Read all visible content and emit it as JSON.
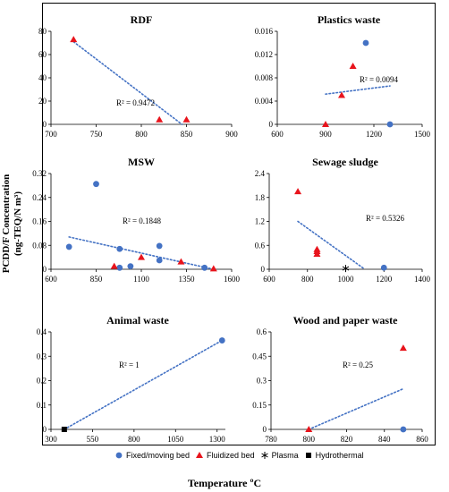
{
  "y_axis_label_line1": "PCDD/F Concentration",
  "y_axis_label_line2": "(ng-TEQ/N m³)",
  "x_axis_label": "Temperature ºC",
  "legend": [
    {
      "label": "Fixed/moving bed",
      "marker": "circle",
      "color": "#4472C4"
    },
    {
      "label": "Fluidized bed",
      "marker": "triangle",
      "color": "#E8141C"
    },
    {
      "label": "Plasma",
      "marker": "asterisk",
      "color": "#000000"
    },
    {
      "label": "Hydrothermal",
      "marker": "square",
      "color": "#000000"
    }
  ],
  "chart_data": [
    {
      "type": "scatter",
      "title": "RDF",
      "xlim": [
        700,
        900
      ],
      "xticks": [
        700,
        750,
        800,
        850,
        900
      ],
      "ylim": [
        0,
        80
      ],
      "yticks": [
        0,
        20,
        40,
        60,
        80
      ],
      "series": [
        {
          "name": "Fluidized bed",
          "marker": "triangle",
          "points": [
            [
              725,
              73
            ],
            [
              820,
              4
            ],
            [
              850,
              4
            ]
          ]
        }
      ],
      "trendline": [
        [
          725,
          71
        ],
        [
          845,
          0
        ]
      ],
      "r2_label": "R² = 0.9472"
    },
    {
      "type": "scatter",
      "title": "Plastics waste",
      "xlim": [
        600,
        1500
      ],
      "xticks": [
        600,
        900,
        1200,
        1500
      ],
      "ylim": [
        0,
        0.016
      ],
      "yticks": [
        0,
        0.004,
        0.008,
        0.012,
        0.016
      ],
      "series": [
        {
          "name": "Fixed/moving bed",
          "marker": "circle",
          "points": [
            [
              1150,
              0.014
            ],
            [
              1300,
              0
            ]
          ]
        },
        {
          "name": "Fluidized bed",
          "marker": "triangle",
          "points": [
            [
              1070,
              0.01
            ],
            [
              1000,
              0.005
            ],
            [
              900,
              0
            ]
          ]
        }
      ],
      "trendline": [
        [
          900,
          0.0052
        ],
        [
          1300,
          0.0066
        ]
      ],
      "r2_label": "R² = 0.0094"
    },
    {
      "type": "scatter",
      "title": "MSW",
      "xlim": [
        600,
        1600
      ],
      "xticks": [
        600,
        850,
        1100,
        1350,
        1600
      ],
      "ylim": [
        0,
        0.32
      ],
      "yticks": [
        0,
        0.08,
        0.16,
        0.24,
        0.32
      ],
      "series": [
        {
          "name": "Fixed/moving bed",
          "marker": "circle",
          "points": [
            [
              700,
              0.075
            ],
            [
              850,
              0.285
            ],
            [
              980,
              0.068
            ],
            [
              980,
              0.005
            ],
            [
              1040,
              0.01
            ],
            [
              1200,
              0.078
            ],
            [
              1200,
              0.03
            ],
            [
              1450,
              0.005
            ]
          ]
        },
        {
          "name": "Fluidized bed",
          "marker": "triangle",
          "points": [
            [
              950,
              0.01
            ],
            [
              1100,
              0.04
            ],
            [
              1320,
              0.025
            ],
            [
              1500,
              0.002
            ]
          ]
        }
      ],
      "trendline": [
        [
          700,
          0.108
        ],
        [
          1500,
          0
        ]
      ],
      "r2_label": "R² = 0.1848"
    },
    {
      "type": "scatter",
      "title": "Sewage sludge",
      "xlim": [
        600,
        1400
      ],
      "xticks": [
        600,
        800,
        1000,
        1200,
        1400
      ],
      "ylim": [
        0,
        2.4
      ],
      "yticks": [
        0,
        0.6,
        1.2,
        1.8,
        2.4
      ],
      "series": [
        {
          "name": "Fixed/moving bed",
          "marker": "circle",
          "points": [
            [
              1200,
              0.04
            ]
          ]
        },
        {
          "name": "Fluidized bed",
          "marker": "triangle",
          "points": [
            [
              750,
              1.95
            ],
            [
              850,
              0.5
            ],
            [
              850,
              0.45
            ],
            [
              850,
              0.38
            ]
          ]
        },
        {
          "name": "Plasma",
          "marker": "asterisk",
          "points": [
            [
              1000,
              0.02
            ]
          ]
        }
      ],
      "trendline": [
        [
          750,
          1.2
        ],
        [
          1100,
          0
        ]
      ],
      "r2_label": "R² = 0.5326"
    },
    {
      "type": "scatter",
      "title": "Animal waste",
      "xlim": [
        300,
        1350
      ],
      "xticks": [
        300,
        550,
        800,
        1050,
        1300
      ],
      "ylim": [
        0,
        0.4
      ],
      "yticks": [
        0,
        0.1,
        0.2,
        0.3,
        0.4
      ],
      "series": [
        {
          "name": "Fixed/moving bed",
          "marker": "circle",
          "points": [
            [
              1330,
              0.365
            ]
          ]
        },
        {
          "name": "Hydrothermal",
          "marker": "square",
          "points": [
            [
              380,
              0
            ]
          ]
        }
      ],
      "trendline": [
        [
          380,
          0
        ],
        [
          1330,
          0.365
        ]
      ],
      "r2_label": "R² = 1"
    },
    {
      "type": "scatter",
      "title": "Wood and paper waste",
      "xlim": [
        780,
        860
      ],
      "xticks": [
        780,
        800,
        820,
        840,
        860
      ],
      "ylim": [
        0,
        0.6
      ],
      "yticks": [
        0,
        0.15,
        0.3,
        0.45,
        0.6
      ],
      "series": [
        {
          "name": "Fixed/moving bed",
          "marker": "circle",
          "points": [
            [
              850,
              0
            ]
          ]
        },
        {
          "name": "Fluidized bed",
          "marker": "triangle",
          "points": [
            [
              850,
              0.5
            ],
            [
              800,
              0
            ]
          ]
        }
      ],
      "trendline": [
        [
          800,
          0
        ],
        [
          850,
          0.25
        ]
      ],
      "r2_label": "R² = 0.25"
    }
  ],
  "colors": {
    "fixed": "#4472C4",
    "fluidized": "#E8141C",
    "trend": "#4472C4",
    "black": "#000000"
  }
}
